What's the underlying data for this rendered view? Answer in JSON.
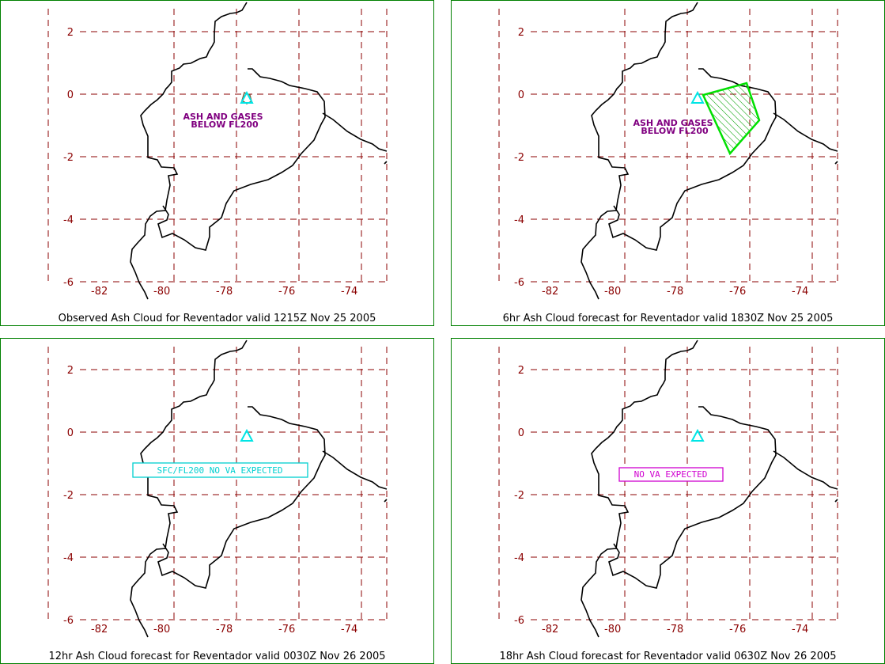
{
  "colors": {
    "grid": "#8b0000",
    "coast": "#000000",
    "volcano": "#00e5e5",
    "label_purple": "#800080",
    "forecast_green": "#00e000",
    "box_cyan": "#00d0d0",
    "box_magenta": "#d000d0",
    "border": "#008000"
  },
  "axes": {
    "lon_ticks": [
      "-82",
      "-80",
      "-78",
      "-76",
      "-74"
    ],
    "lat_ticks": [
      "2",
      "0",
      "-2",
      "-4",
      "-6"
    ]
  },
  "volcano_icon": "triangle-volcano-icon",
  "panels": [
    {
      "caption": "Observed Ash Cloud for Reventador valid 1215Z Nov 25 2005",
      "label_line1": "ASH AND GASES",
      "label_line2": "BELOW FL200",
      "box_text": ""
    },
    {
      "caption": "6hr Ash Cloud forecast for Reventador valid 1830Z Nov 25 2005",
      "label_line1": "ASH AND GASES",
      "label_line2": "BELOW FL200",
      "box_text": ""
    },
    {
      "caption": "12hr Ash Cloud forecast for Reventador valid 0030Z Nov 26 2005",
      "label_line1": "",
      "label_line2": "",
      "box_text": "SFC/FL200 NO VA EXPECTED"
    },
    {
      "caption": "18hr Ash Cloud forecast for Reventador valid 0630Z Nov 26 2005",
      "label_line1": "",
      "label_line2": "",
      "box_text": "NO VA EXPECTED"
    }
  ]
}
